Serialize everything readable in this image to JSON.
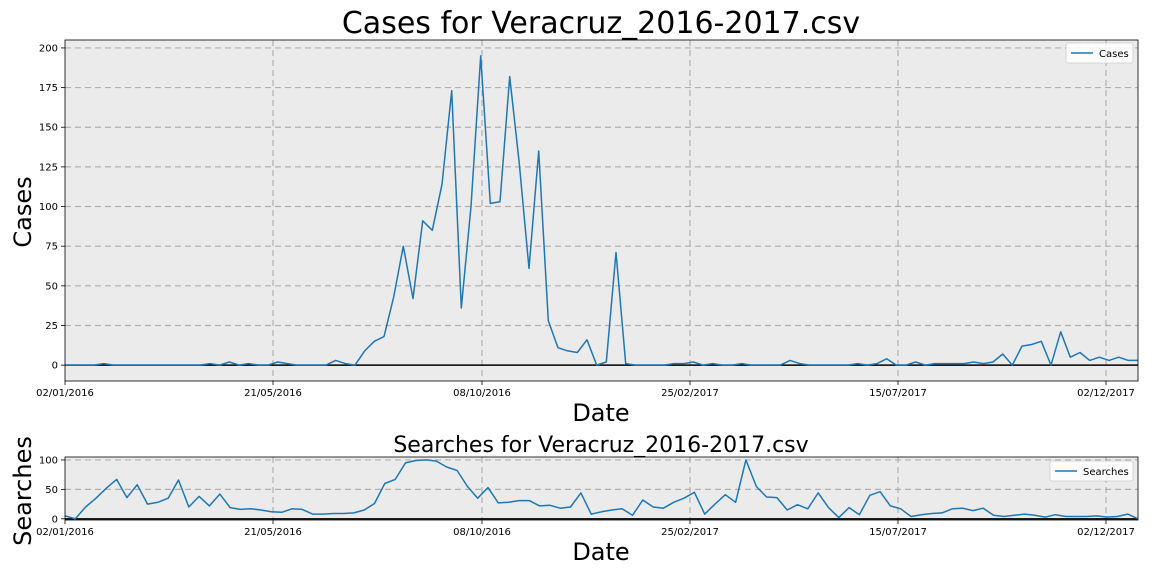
{
  "chart_data": [
    {
      "type": "line",
      "title": "Cases for Veracruz_2016-2017.csv",
      "xlabel": "Date",
      "ylabel": "Cases",
      "xticks": [
        "02/01/2016",
        "21/05/2016",
        "08/10/2016",
        "25/02/2017",
        "15/07/2017",
        "02/12/2017"
      ],
      "yticks": [
        "0",
        "25",
        "50",
        "75",
        "100",
        "125",
        "150",
        "175",
        "200"
      ],
      "ylim": [
        -10,
        205
      ],
      "grid": true,
      "legend": "top-right",
      "series": [
        {
          "name": "Cases",
          "color": "#1f77b4",
          "values": [
            0,
            0,
            0,
            0,
            1,
            0,
            0,
            0,
            0,
            0,
            0,
            0,
            0,
            0,
            0,
            1,
            0,
            2,
            0,
            1,
            0,
            0,
            2,
            1,
            0,
            0,
            0,
            0,
            3,
            1,
            0,
            9,
            15,
            18,
            43,
            75,
            42,
            91,
            85,
            114,
            173,
            36,
            100,
            195,
            102,
            103,
            182,
            127,
            61,
            135,
            28,
            11,
            9,
            8,
            16,
            0,
            2,
            71,
            1,
            0,
            0,
            0,
            0,
            1,
            1,
            2,
            0,
            1,
            0,
            0,
            1,
            0,
            0,
            0,
            0,
            3,
            1,
            0,
            0,
            0,
            0,
            0,
            1,
            0,
            1,
            4,
            0,
            0,
            2,
            0,
            1,
            1,
            1,
            1,
            2,
            1,
            2,
            7,
            0,
            12,
            13,
            15,
            0,
            21,
            5,
            8,
            3,
            5,
            3,
            5,
            3,
            3
          ]
        }
      ]
    },
    {
      "type": "line",
      "title": "Searches for Veracruz_2016-2017.csv",
      "xlabel": "Date",
      "ylabel": "Searches",
      "xticks": [
        "02/01/2016",
        "21/05/2016",
        "08/10/2016",
        "25/02/2017",
        "15/07/2017",
        "02/12/2017"
      ],
      "yticks": [
        "0",
        "50",
        "100"
      ],
      "ylim": [
        -2,
        105
      ],
      "grid": true,
      "legend": "top-right",
      "series": [
        {
          "name": "Searches",
          "color": "#1f77b4",
          "values": [
            5,
            0,
            20,
            35,
            52,
            67,
            36,
            58,
            25,
            28,
            35,
            66,
            20,
            38,
            22,
            42,
            19,
            16,
            17,
            15,
            12,
            11,
            17,
            16,
            8,
            8,
            9,
            9,
            10,
            15,
            26,
            60,
            67,
            95,
            99,
            100,
            98,
            88,
            82,
            55,
            35,
            53,
            27,
            28,
            31,
            31,
            22,
            23,
            18,
            20,
            44,
            8,
            12,
            15,
            17,
            6,
            32,
            20,
            18,
            28,
            35,
            45,
            8,
            25,
            41,
            28,
            100,
            55,
            37,
            36,
            15,
            24,
            17,
            44,
            19,
            2,
            19,
            7,
            40,
            46,
            22,
            17,
            4,
            7,
            9,
            10,
            17,
            18,
            14,
            18,
            6,
            4,
            6,
            8,
            6,
            3,
            7,
            4,
            4,
            4,
            5,
            3,
            4,
            8,
            0
          ]
        }
      ]
    }
  ]
}
